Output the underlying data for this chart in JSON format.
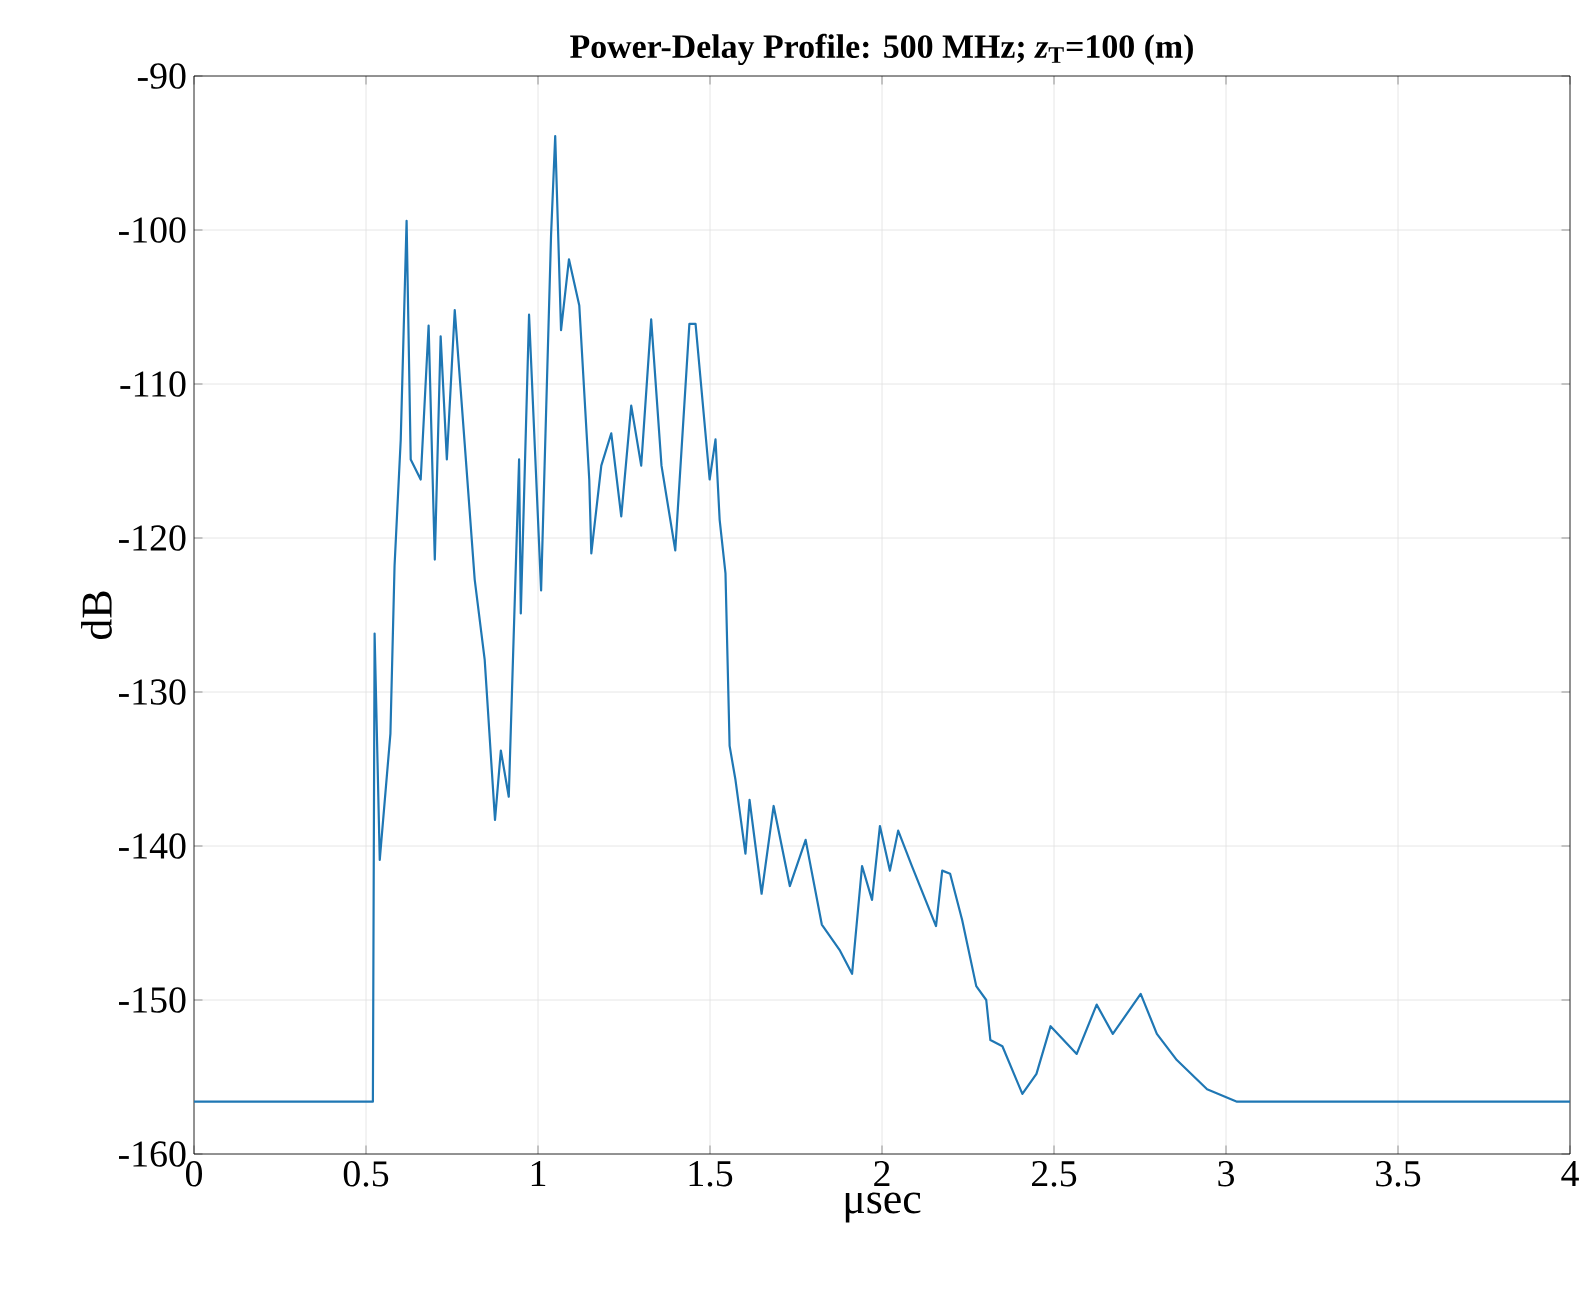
{
  "chart_data": {
    "type": "line",
    "title": "Power-Delay Profile: 500 MHz; *z*$_{T}$=100 (m)",
    "xlabel": "μsec",
    "ylabel": "dB",
    "xlim": [
      0,
      4
    ],
    "xticks": [
      0,
      0.5,
      1,
      1.5,
      2,
      2.5,
      3,
      3.5,
      4
    ],
    "ylim": [
      -160,
      -90
    ],
    "yticks": [
      -160,
      -150,
      -140,
      -130,
      -120,
      -110,
      -100,
      -90
    ],
    "grid": true,
    "line_style": "solid",
    "series": [
      {
        "color": "#1f77b4",
        "x": [
          0,
          0.52,
          0.525,
          0.54,
          0.571,
          0.583,
          0.601,
          0.618,
          0.63,
          0.659,
          0.682,
          0.7,
          0.717,
          0.735,
          0.758,
          0.787,
          0.816,
          0.845,
          0.875,
          0.892,
          0.915,
          0.945,
          0.95,
          0.974,
          1.009,
          1.038,
          1.05,
          1.067,
          1.09,
          1.12,
          1.149,
          1.155,
          1.184,
          1.213,
          1.242,
          1.271,
          1.3,
          1.329,
          1.359,
          1.399,
          1.44,
          1.458,
          1.499,
          1.516,
          1.528,
          1.545,
          1.557,
          1.574,
          1.603,
          1.615,
          1.65,
          1.685,
          1.732,
          1.778,
          1.825,
          1.878,
          1.913,
          1.942,
          1.971,
          1.994,
          2.023,
          2.047,
          2.087,
          2.157,
          2.175,
          2.198,
          2.233,
          2.274,
          2.303,
          2.315,
          2.35,
          2.408,
          2.449,
          2.49,
          2.566,
          2.624,
          2.671,
          2.752,
          2.799,
          2.857,
          2.945,
          3.032,
          4
        ],
        "values": [
          -156.6,
          -156.6,
          -126.2,
          -140.9,
          -132.7,
          -121.8,
          -113.6,
          -99.4,
          -114.9,
          -116.2,
          -106.2,
          -121.4,
          -106.9,
          -114.9,
          -105.2,
          -113.9,
          -122.7,
          -127.9,
          -138.3,
          -133.8,
          -136.8,
          -114.9,
          -124.9,
          -105.5,
          -123.4,
          -100.3,
          -93.9,
          -106.5,
          -101.9,
          -104.9,
          -116.2,
          -121,
          -115.3,
          -113.2,
          -118.6,
          -111.4,
          -115.3,
          -105.8,
          -115.3,
          -120.8,
          -106.1,
          -106.1,
          -116.2,
          -113.6,
          -118.8,
          -122.3,
          -133.5,
          -135.7,
          -140.5,
          -137,
          -143.1,
          -137.4,
          -142.6,
          -139.6,
          -145.1,
          -146.8,
          -148.3,
          -141.3,
          -143.5,
          -138.7,
          -141.6,
          -139,
          -141.3,
          -145.2,
          -141.6,
          -141.8,
          -144.8,
          -149.1,
          -150,
          -152.6,
          -153,
          -156.1,
          -154.8,
          -151.7,
          -153.5,
          -150.3,
          -152.2,
          -149.6,
          -152.2,
          -153.9,
          -155.8,
          -156.6,
          -156.6
        ]
      }
    ]
  }
}
